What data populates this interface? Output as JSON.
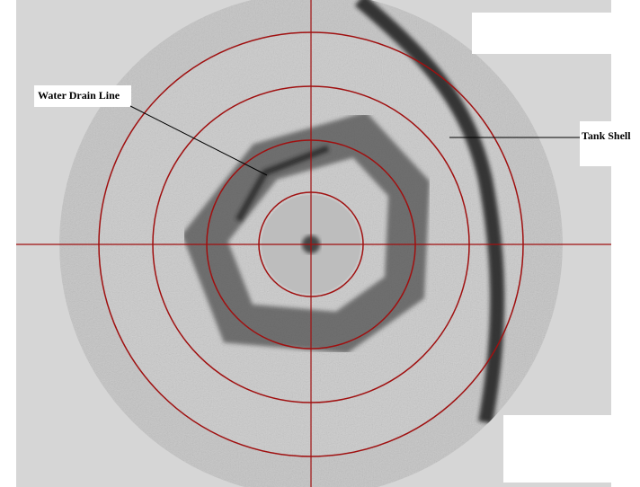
{
  "annotations": [
    {
      "label": "Water Drain Line"
    },
    {
      "label": "Tank Shell"
    }
  ]
}
